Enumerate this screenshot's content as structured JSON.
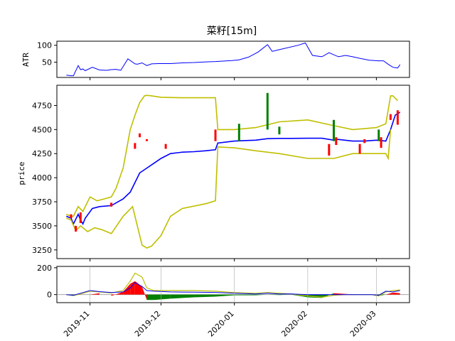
{
  "chart_data": [
    {
      "panel": "atr",
      "type": "line",
      "title": "菜籽[15m]",
      "ylabel": "ATR",
      "ylim": [
        5,
        112
      ],
      "yticks": [
        50,
        100
      ],
      "color": "#0000ff",
      "x": [
        "2019-10-22",
        "2019-10-24",
        "2019-10-25",
        "2019-10-27",
        "2019-10-28",
        "2019-10-29",
        "2019-10-30",
        "2019-11-02",
        "2019-11-05",
        "2019-11-08",
        "2019-11-10",
        "2019-11-12",
        "2019-11-14",
        "2019-11-17",
        "2019-11-20",
        "2019-11-21",
        "2019-11-23",
        "2019-11-25",
        "2019-11-27",
        "2019-11-30",
        "2019-12-05",
        "2019-12-10",
        "2019-12-15",
        "2019-12-20",
        "2019-12-24",
        "2019-12-31",
        "2020-01-03",
        "2020-01-07",
        "2020-01-11",
        "2020-01-15",
        "2020-01-17",
        "2020-01-20",
        "2020-01-28",
        "2020-01-31",
        "2020-02-03",
        "2020-02-07",
        "2020-02-10",
        "2020-02-14",
        "2020-02-17",
        "2020-02-20",
        "2020-02-24",
        "2020-02-27",
        "2020-03-02",
        "2020-03-04",
        "2020-03-06",
        "2020-03-08",
        "2020-03-09",
        "2020-03-10",
        "2020-03-11"
      ],
      "y": [
        12,
        10,
        10,
        40,
        28,
        30,
        25,
        35,
        27,
        26,
        28,
        29,
        26,
        60,
        45,
        44,
        48,
        40,
        45,
        46,
        46,
        48,
        49,
        51,
        52,
        55,
        57,
        65,
        80,
        102,
        82,
        87,
        100,
        107,
        70,
        66,
        78,
        66,
        70,
        66,
        60,
        56,
        54,
        54,
        44,
        35,
        34,
        33,
        43
      ]
    },
    {
      "panel": "price",
      "type": "line",
      "ylabel": "price",
      "ylim": [
        3160,
        4960
      ],
      "yticks": [
        3250,
        3500,
        3750,
        4000,
        4250,
        4500,
        4750
      ],
      "series": [
        {
          "color": "#0000ff",
          "x": [
            "2019-10-22",
            "2019-10-24",
            "2019-10-25",
            "2019-10-27",
            "2019-10-28",
            "2019-10-29",
            "2019-10-30",
            "2019-11-02",
            "2019-11-05",
            "2019-11-10",
            "2019-11-15",
            "2019-11-18",
            "2019-11-20",
            "2019-11-22",
            "2019-11-25",
            "2019-11-28",
            "2019-12-01",
            "2019-12-05",
            "2019-12-10",
            "2019-12-15",
            "2019-12-20",
            "2019-12-24",
            "2019-12-25",
            "2020-01-01",
            "2020-01-05",
            "2020-01-10",
            "2020-01-15",
            "2020-01-20",
            "2020-01-25",
            "2020-02-01",
            "2020-02-07",
            "2020-02-12",
            "2020-02-13",
            "2020-02-20",
            "2020-02-25",
            "2020-03-01",
            "2020-03-05",
            "2020-03-07",
            "2020-03-09",
            "2020-03-11"
          ],
          "y": [
            3600,
            3580,
            3520,
            3620,
            3560,
            3520,
            3580,
            3680,
            3700,
            3710,
            3780,
            3850,
            3950,
            4050,
            4100,
            4150,
            4200,
            4250,
            4265,
            4270,
            4280,
            4290,
            4360,
            4380,
            4385,
            4390,
            4405,
            4408,
            4408,
            4410,
            4410,
            4390,
            4400,
            4380,
            4380,
            4390,
            4380,
            4500,
            4650,
            4680
          ]
        },
        {
          "color": "#bfbf00",
          "x": [
            "2019-10-22",
            "2019-10-24",
            "2019-10-25",
            "2019-10-27",
            "2019-10-29",
            "2019-11-01",
            "2019-11-04",
            "2019-11-07",
            "2019-11-10",
            "2019-11-12",
            "2019-11-15",
            "2019-11-18",
            "2019-11-20",
            "2019-11-22",
            "2019-11-24",
            "2019-11-25",
            "2019-11-27",
            "2019-12-01",
            "2019-12-10",
            "2019-12-24",
            "2019-12-25",
            "2020-01-01",
            "2020-01-10",
            "2020-01-20",
            "2020-02-01",
            "2020-02-12",
            "2020-02-20",
            "2020-03-01",
            "2020-03-05",
            "2020-03-07",
            "2020-03-08",
            "2020-03-10"
          ],
          "y": [
            3620,
            3600,
            3600,
            3700,
            3650,
            3800,
            3760,
            3780,
            3800,
            3890,
            4100,
            4500,
            4650,
            4780,
            4850,
            4855,
            4850,
            4835,
            4830,
            4830,
            4500,
            4500,
            4520,
            4580,
            4600,
            4540,
            4500,
            4520,
            4560,
            4850,
            4850,
            4800
          ]
        },
        {
          "color": "#bfbf00",
          "x": [
            "2019-10-22",
            "2019-10-24",
            "2019-10-26",
            "2019-10-28",
            "2019-10-31",
            "2019-11-03",
            "2019-11-06",
            "2019-11-10",
            "2019-11-15",
            "2019-11-19",
            "2019-11-23",
            "2019-11-25",
            "2019-11-27",
            "2019-12-01",
            "2019-12-05",
            "2019-12-10",
            "2019-12-20",
            "2019-12-24",
            "2019-12-25",
            "2020-01-01",
            "2020-01-10",
            "2020-01-20",
            "2020-02-01",
            "2020-02-12",
            "2020-02-20",
            "2020-03-01",
            "2020-03-05",
            "2020-03-06",
            "2020-03-07"
          ],
          "y": [
            3580,
            3560,
            3450,
            3500,
            3440,
            3480,
            3460,
            3420,
            3600,
            3700,
            3300,
            3270,
            3290,
            3400,
            3600,
            3680,
            3730,
            3760,
            4320,
            4310,
            4280,
            4250,
            4200,
            4200,
            4250,
            4250,
            4250,
            4200,
            4500
          ]
        }
      ],
      "candles": [
        {
          "x": "2019-10-24",
          "y0": 3580,
          "y1": 3620,
          "color": "#ff0000"
        },
        {
          "x": "2019-10-26",
          "y0": 3440,
          "y1": 3500,
          "color": "#ff0000"
        },
        {
          "x": "2019-10-28",
          "y0": 3530,
          "y1": 3640,
          "color": "#ff0000"
        },
        {
          "x": "2019-11-10",
          "y0": 3700,
          "y1": 3740,
          "color": "#ff0000"
        },
        {
          "x": "2019-11-20",
          "y0": 4300,
          "y1": 4360,
          "color": "#ff0000"
        },
        {
          "x": "2019-11-22",
          "y0": 4420,
          "y1": 4460,
          "color": "#ff0000"
        },
        {
          "x": "2019-11-25",
          "y0": 4380,
          "y1": 4400,
          "color": "#ff0000"
        },
        {
          "x": "2019-12-03",
          "y0": 4300,
          "y1": 4350,
          "color": "#ff0000"
        },
        {
          "x": "2019-12-24",
          "y0": 4380,
          "y1": 4500,
          "color": "#ff0000"
        },
        {
          "x": "2020-01-03",
          "y0": 4380,
          "y1": 4560,
          "color": "#008000"
        },
        {
          "x": "2020-01-15",
          "y0": 4500,
          "y1": 4880,
          "color": "#008000"
        },
        {
          "x": "2020-01-20",
          "y0": 4450,
          "y1": 4530,
          "color": "#008000"
        },
        {
          "x": "2020-02-10",
          "y0": 4230,
          "y1": 4350,
          "color": "#ff0000"
        },
        {
          "x": "2020-02-12",
          "y0": 4380,
          "y1": 4600,
          "color": "#008000"
        },
        {
          "x": "2020-02-13",
          "y0": 4340,
          "y1": 4420,
          "color": "#ff0000"
        },
        {
          "x": "2020-02-23",
          "y0": 4250,
          "y1": 4350,
          "color": "#ff0000"
        },
        {
          "x": "2020-02-25",
          "y0": 4360,
          "y1": 4400,
          "color": "#ff0000"
        },
        {
          "x": "2020-03-02",
          "y0": 4380,
          "y1": 4500,
          "color": "#008000"
        },
        {
          "x": "2020-03-03",
          "y0": 4310,
          "y1": 4420,
          "color": "#ff0000"
        },
        {
          "x": "2020-03-07",
          "y0": 4600,
          "y1": 4660,
          "color": "#ff0000"
        },
        {
          "x": "2020-03-10",
          "y0": 4550,
          "y1": 4700,
          "color": "#ff0000"
        }
      ]
    },
    {
      "panel": "macd",
      "type": "area",
      "ylim": [
        -60,
        210
      ],
      "yticks": [
        0,
        200
      ],
      "x": [
        "2019-10-22",
        "2019-10-25",
        "2019-10-28",
        "2019-11-01",
        "2019-11-05",
        "2019-11-10",
        "2019-11-15",
        "2019-11-18",
        "2019-11-20",
        "2019-11-23",
        "2019-11-25",
        "2019-11-28",
        "2019-12-05",
        "2019-12-15",
        "2019-12-24",
        "2020-01-01",
        "2020-01-10",
        "2020-01-15",
        "2020-01-20",
        "2020-01-25",
        "2020-02-01",
        "2020-02-07",
        "2020-02-12",
        "2020-02-17",
        "2020-02-22",
        "2020-02-28",
        "2020-03-02",
        "2020-03-05",
        "2020-03-08",
        "2020-03-11"
      ],
      "line_blue": [
        0,
        -5,
        10,
        30,
        22,
        15,
        20,
        50,
        90,
        60,
        30,
        25,
        20,
        18,
        16,
        10,
        5,
        10,
        5,
        5,
        0,
        0,
        0,
        0,
        0,
        0,
        -5,
        25,
        20,
        30
      ],
      "line_yellow": [
        0,
        -8,
        5,
        25,
        20,
        12,
        30,
        100,
        160,
        130,
        50,
        30,
        30,
        30,
        25,
        15,
        10,
        15,
        10,
        5,
        -10,
        -20,
        -5,
        0,
        0,
        0,
        -10,
        20,
        30,
        35
      ],
      "hist": [
        0,
        -5,
        0,
        0,
        10,
        -10,
        20,
        80,
        100,
        60,
        -40,
        -40,
        -30,
        -20,
        -15,
        -5,
        -5,
        0,
        -3,
        0,
        -20,
        -25,
        10,
        5,
        0,
        0,
        -10,
        0,
        15,
        10
      ]
    }
  ],
  "x_ticks": [
    "2019-11",
    "2019-12",
    "2020-01",
    "2020-02",
    "2020-03"
  ]
}
